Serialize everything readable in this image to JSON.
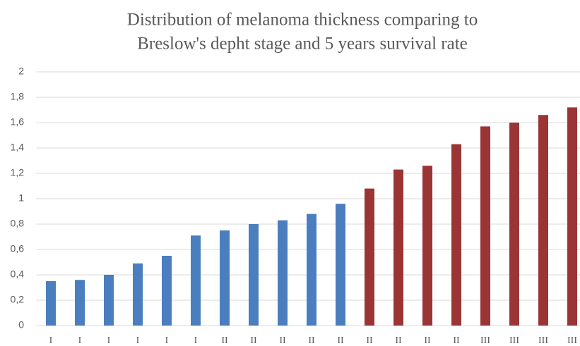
{
  "chart_data": {
    "type": "bar",
    "title": [
      "Distribution of melanoma thickness comparing to",
      "Breslow's depht stage and 5 years survival rate"
    ],
    "categories": [
      "I",
      "I",
      "I",
      "I",
      "I",
      "I",
      "II",
      "II",
      "II",
      "II",
      "II",
      "II",
      "II",
      "II",
      "II",
      "III",
      "III",
      "III",
      "III"
    ],
    "values": [
      0.35,
      0.36,
      0.4,
      0.49,
      0.55,
      0.71,
      0.75,
      0.8,
      0.83,
      0.88,
      0.96,
      1.08,
      1.23,
      1.26,
      1.43,
      1.57,
      1.6,
      1.66,
      1.72
    ],
    "colors": [
      "#4a7ebf",
      "#4a7ebf",
      "#4a7ebf",
      "#4a7ebf",
      "#4a7ebf",
      "#4a7ebf",
      "#4a7ebf",
      "#4a7ebf",
      "#4a7ebf",
      "#4a7ebf",
      "#4a7ebf",
      "#9b3535",
      "#9b3535",
      "#9b3535",
      "#9b3535",
      "#9b3535",
      "#9b3535",
      "#9b3535",
      "#9b3535"
    ],
    "ylim": [
      0,
      2
    ],
    "yticks": [
      0,
      {
        "value": 0.2,
        "label": "0,2"
      },
      {
        "value": 0.4,
        "label": "0,4"
      },
      {
        "value": 0.6,
        "label": "0,6"
      },
      {
        "value": 0.8,
        "label": "0,8"
      },
      1,
      {
        "value": 1.2,
        "label": "1,2"
      },
      {
        "value": 1.4,
        "label": "1,4"
      },
      {
        "value": 1.6,
        "label": "1,6"
      },
      {
        "value": 1.8,
        "label": "1,8"
      },
      2
    ],
    "grid": true
  }
}
